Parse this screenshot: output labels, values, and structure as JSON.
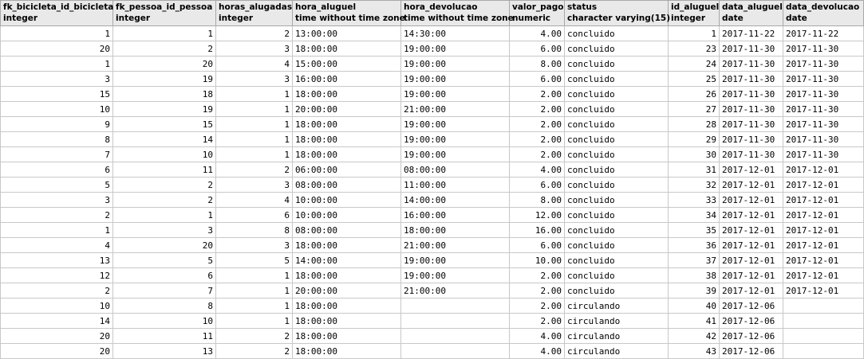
{
  "columns": [
    {
      "name": "fk_bicicleta_id_bicicleta",
      "type": "integer"
    },
    {
      "name": "fk_pessoa_id_pessoa",
      "type": "integer"
    },
    {
      "name": "horas_alugadas",
      "type": "integer"
    },
    {
      "name": "hora_aluguel",
      "type": "time without time zone"
    },
    {
      "name": "hora_devolucao",
      "type": "time without time zone"
    },
    {
      "name": "valor_pago",
      "type": "numeric"
    },
    {
      "name": "status",
      "type": "character varying(15)"
    },
    {
      "name": "id_aluguel",
      "type": "integer"
    },
    {
      "name": "data_aluguel",
      "type": "date"
    },
    {
      "name": "data_devolucao",
      "type": "date"
    }
  ],
  "rows": [
    [
      "1",
      "1",
      "2",
      "13:00:00",
      "14:30:00",
      "4.00",
      "concluido",
      "1",
      "2017-11-22",
      "2017-11-22"
    ],
    [
      "20",
      "2",
      "3",
      "18:00:00",
      "19:00:00",
      "6.00",
      "concluido",
      "23",
      "2017-11-30",
      "2017-11-30"
    ],
    [
      "1",
      "20",
      "4",
      "15:00:00",
      "19:00:00",
      "8.00",
      "concluido",
      "24",
      "2017-11-30",
      "2017-11-30"
    ],
    [
      "3",
      "19",
      "3",
      "16:00:00",
      "19:00:00",
      "6.00",
      "concluido",
      "25",
      "2017-11-30",
      "2017-11-30"
    ],
    [
      "15",
      "18",
      "1",
      "18:00:00",
      "19:00:00",
      "2.00",
      "concluido",
      "26",
      "2017-11-30",
      "2017-11-30"
    ],
    [
      "10",
      "19",
      "1",
      "20:00:00",
      "21:00:00",
      "2.00",
      "concluido",
      "27",
      "2017-11-30",
      "2017-11-30"
    ],
    [
      "9",
      "15",
      "1",
      "18:00:00",
      "19:00:00",
      "2.00",
      "concluido",
      "28",
      "2017-11-30",
      "2017-11-30"
    ],
    [
      "8",
      "14",
      "1",
      "18:00:00",
      "19:00:00",
      "2.00",
      "concluido",
      "29",
      "2017-11-30",
      "2017-11-30"
    ],
    [
      "7",
      "10",
      "1",
      "18:00:00",
      "19:00:00",
      "2.00",
      "concluido",
      "30",
      "2017-11-30",
      "2017-11-30"
    ],
    [
      "6",
      "11",
      "2",
      "06:00:00",
      "08:00:00",
      "4.00",
      "concluido",
      "31",
      "2017-12-01",
      "2017-12-01"
    ],
    [
      "5",
      "2",
      "3",
      "08:00:00",
      "11:00:00",
      "6.00",
      "concluido",
      "32",
      "2017-12-01",
      "2017-12-01"
    ],
    [
      "3",
      "2",
      "4",
      "10:00:00",
      "14:00:00",
      "8.00",
      "concluido",
      "33",
      "2017-12-01",
      "2017-12-01"
    ],
    [
      "2",
      "1",
      "6",
      "10:00:00",
      "16:00:00",
      "12.00",
      "concluido",
      "34",
      "2017-12-01",
      "2017-12-01"
    ],
    [
      "1",
      "3",
      "8",
      "08:00:00",
      "18:00:00",
      "16.00",
      "concluido",
      "35",
      "2017-12-01",
      "2017-12-01"
    ],
    [
      "4",
      "20",
      "3",
      "18:00:00",
      "21:00:00",
      "6.00",
      "concluido",
      "36",
      "2017-12-01",
      "2017-12-01"
    ],
    [
      "13",
      "5",
      "5",
      "14:00:00",
      "19:00:00",
      "10.00",
      "concluido",
      "37",
      "2017-12-01",
      "2017-12-01"
    ],
    [
      "12",
      "6",
      "1",
      "18:00:00",
      "19:00:00",
      "2.00",
      "concluido",
      "38",
      "2017-12-01",
      "2017-12-01"
    ],
    [
      "2",
      "7",
      "1",
      "20:00:00",
      "21:00:00",
      "2.00",
      "concluido",
      "39",
      "2017-12-01",
      "2017-12-01"
    ],
    [
      "10",
      "8",
      "1",
      "18:00:00",
      "",
      "2.00",
      "circulando",
      "40",
      "2017-12-06",
      ""
    ],
    [
      "14",
      "10",
      "1",
      "18:00:00",
      "",
      "2.00",
      "circulando",
      "41",
      "2017-12-06",
      ""
    ],
    [
      "20",
      "11",
      "2",
      "18:00:00",
      "",
      "4.00",
      "circulando",
      "42",
      "2017-12-06",
      ""
    ],
    [
      "20",
      "13",
      "2",
      "18:00:00",
      "",
      "4.00",
      "circulando",
      "43",
      "2017-12-06",
      ""
    ]
  ]
}
